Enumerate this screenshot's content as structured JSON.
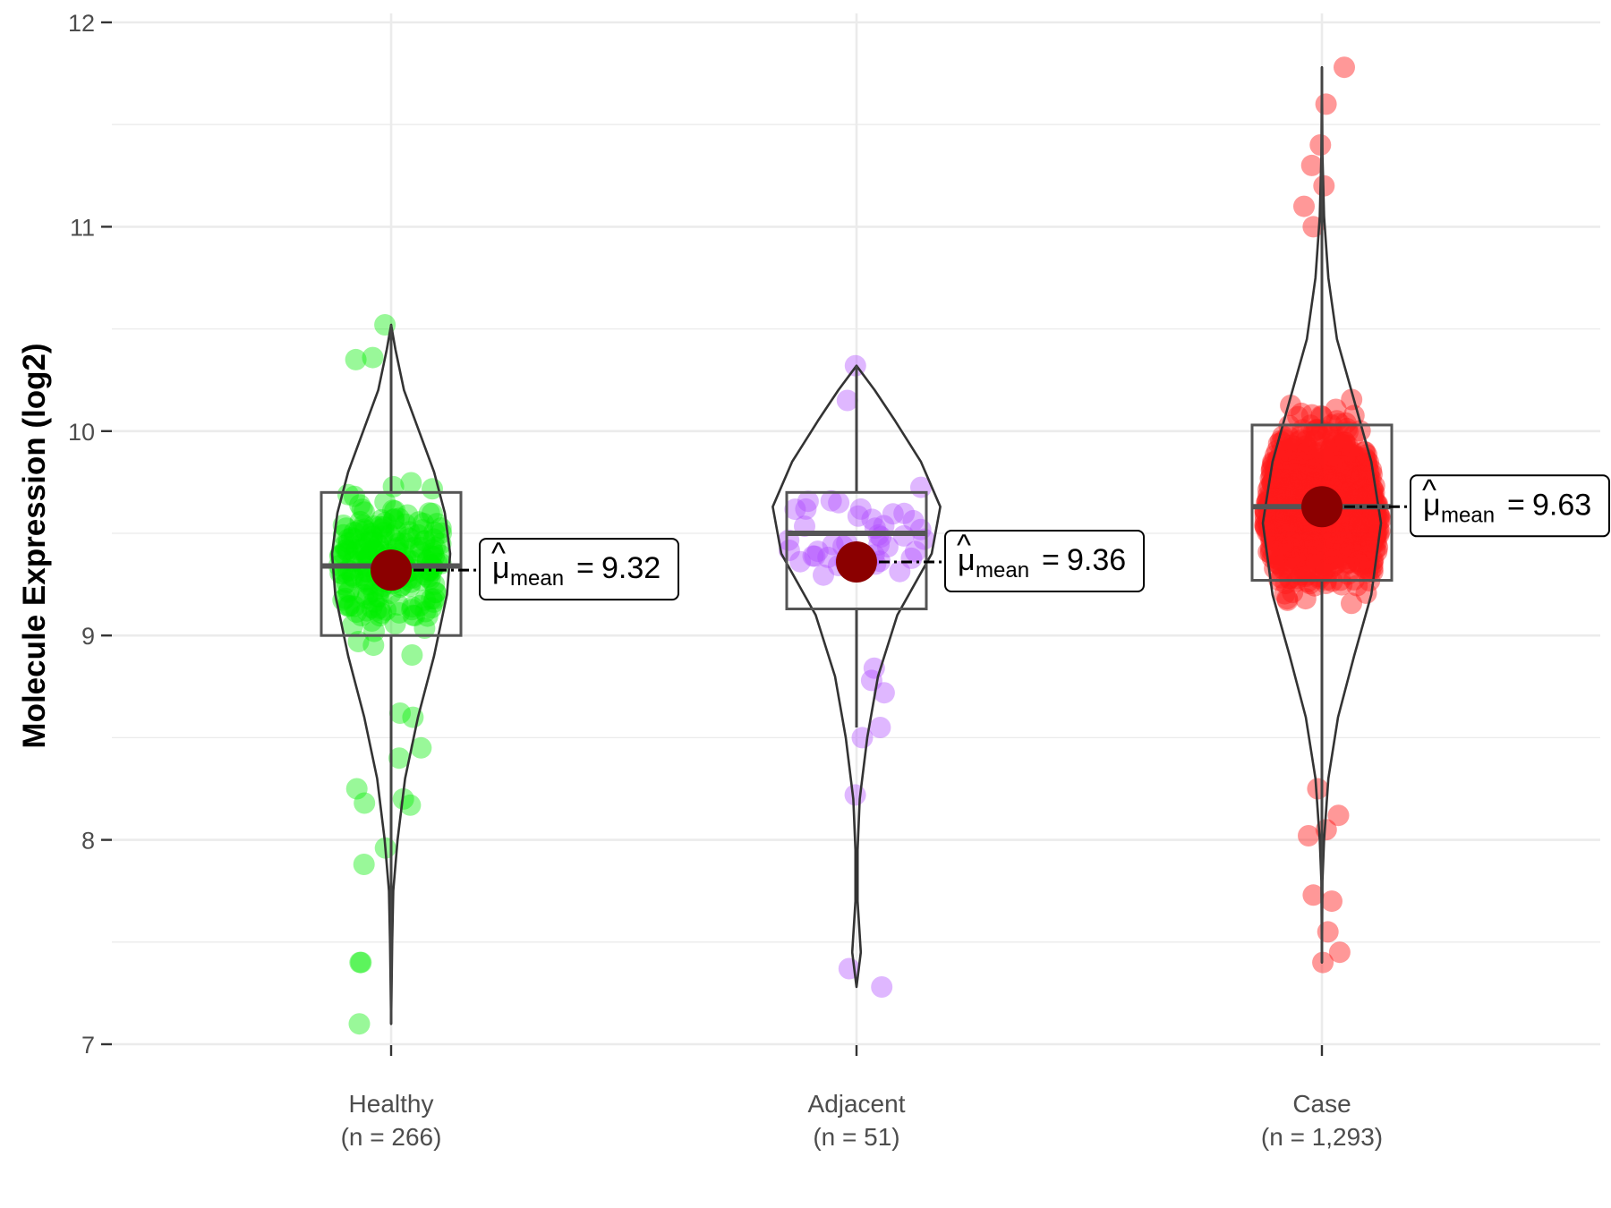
{
  "chart_data": {
    "type": "violin",
    "ylabel": "Molecule Expression (log2)",
    "xlabel": "",
    "ylim": [
      6.95,
      12.05
    ],
    "yticks": [
      7,
      8,
      9,
      10,
      11,
      12
    ],
    "grid": true,
    "categories": [
      {
        "name": "Healthy",
        "n_label": "(n = 266)",
        "color": "#00ee00",
        "q1": 9.0,
        "median": 9.34,
        "q3": 9.7,
        "whisker_low": 7.1,
        "whisker_high": 10.52,
        "mean": 9.32,
        "mean_label": "9.32",
        "violin": [
          [
            7.1,
            0.0
          ],
          [
            7.5,
            0.01
          ],
          [
            7.75,
            0.02
          ],
          [
            8.0,
            0.06
          ],
          [
            8.3,
            0.13
          ],
          [
            8.6,
            0.25
          ],
          [
            8.9,
            0.4
          ],
          [
            9.2,
            0.52
          ],
          [
            9.4,
            0.55
          ],
          [
            9.6,
            0.5
          ],
          [
            9.8,
            0.4
          ],
          [
            10.0,
            0.26
          ],
          [
            10.2,
            0.12
          ],
          [
            10.4,
            0.04
          ],
          [
            10.52,
            0.0
          ]
        ],
        "outliers": [
          7.1,
          7.4,
          7.4,
          7.88,
          7.96,
          8.17,
          8.18,
          8.2,
          8.25,
          8.4,
          8.45,
          8.6,
          8.62,
          10.35,
          10.36,
          10.52
        ]
      },
      {
        "name": "Adjacent",
        "n_label": "(n = 51)",
        "color": "#b04cff",
        "q1": 9.13,
        "median": 9.5,
        "q3": 9.7,
        "whisker_low": 8.55,
        "whisker_high": 10.32,
        "mean": 9.36,
        "mean_label": "9.36",
        "violin": [
          [
            7.28,
            0.0
          ],
          [
            7.45,
            0.04
          ],
          [
            7.7,
            0.01
          ],
          [
            7.95,
            0.01
          ],
          [
            8.2,
            0.03
          ],
          [
            8.5,
            0.1
          ],
          [
            8.8,
            0.2
          ],
          [
            9.1,
            0.38
          ],
          [
            9.4,
            0.7
          ],
          [
            9.63,
            0.78
          ],
          [
            9.85,
            0.6
          ],
          [
            10.05,
            0.36
          ],
          [
            10.2,
            0.17
          ],
          [
            10.32,
            0.0
          ]
        ],
        "outliers": [
          7.28,
          7.37,
          8.22,
          8.5,
          8.55,
          8.72,
          8.78,
          8.84,
          10.15,
          10.32
        ]
      },
      {
        "name": "Case",
        "n_label": "(n = 1,293)",
        "color": "#ff1a1a",
        "q1": 9.27,
        "median": 9.63,
        "q3": 10.03,
        "whisker_low": 7.4,
        "whisker_high": 11.78,
        "mean": 9.63,
        "mean_label": "9.63",
        "violin": [
          [
            7.4,
            0.0
          ],
          [
            7.8,
            0.005
          ],
          [
            8.0,
            0.02
          ],
          [
            8.3,
            0.06
          ],
          [
            8.6,
            0.15
          ],
          [
            8.9,
            0.3
          ],
          [
            9.2,
            0.46
          ],
          [
            9.55,
            0.55
          ],
          [
            9.85,
            0.46
          ],
          [
            10.15,
            0.3
          ],
          [
            10.45,
            0.14
          ],
          [
            10.75,
            0.06
          ],
          [
            11.05,
            0.02
          ],
          [
            11.35,
            0.005
          ],
          [
            11.78,
            0.0
          ]
        ],
        "outliers": [
          7.4,
          7.45,
          7.55,
          7.7,
          7.73,
          8.02,
          8.05,
          8.12,
          8.25,
          11.0,
          11.1,
          11.2,
          11.3,
          11.4,
          11.6,
          11.78
        ]
      }
    ]
  }
}
